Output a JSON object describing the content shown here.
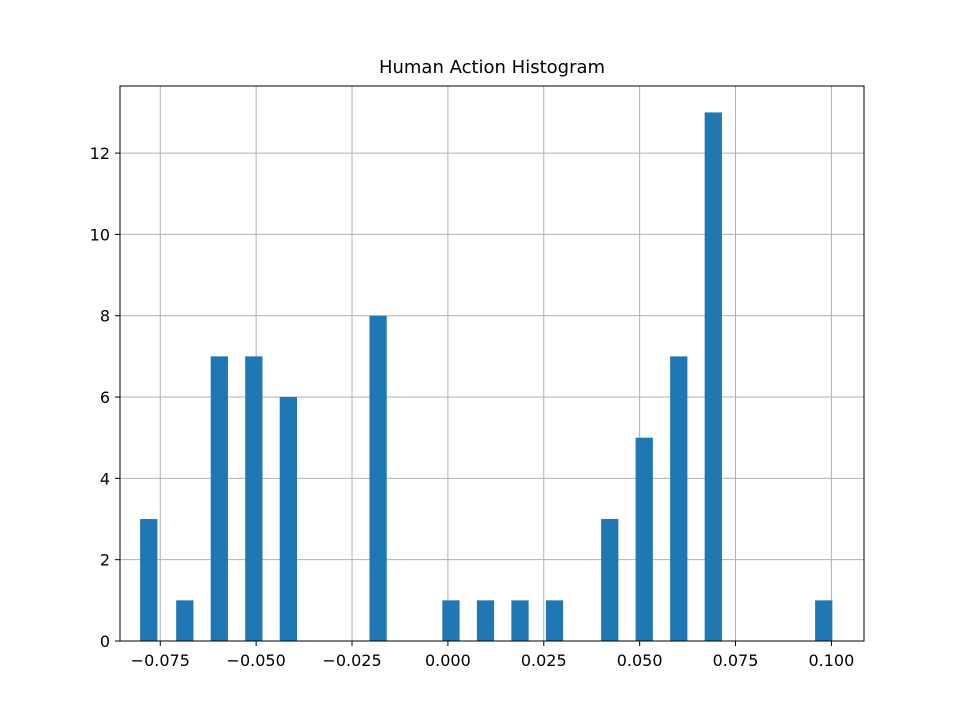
{
  "chart_data": {
    "type": "bar",
    "title": "Human Action Histogram",
    "xlabel": "",
    "ylabel": "",
    "xlim": [
      -0.0855,
      0.1085
    ],
    "ylim": [
      0,
      13.65
    ],
    "grid": true,
    "bar_color": "#1f77b4",
    "bin_width": 0.0045,
    "x_ticks": [
      -0.075,
      -0.05,
      -0.025,
      0.0,
      0.025,
      0.05,
      0.075,
      0.1
    ],
    "x_tick_labels": [
      "−0.075",
      "−0.050",
      "−0.025",
      "0.000",
      "0.025",
      "0.050",
      "0.075",
      "0.100"
    ],
    "y_ticks": [
      0,
      2,
      4,
      6,
      8,
      10,
      12
    ],
    "y_tick_labels": [
      "0",
      "2",
      "4",
      "6",
      "8",
      "10",
      "12"
    ],
    "bins": [
      {
        "x": -0.078,
        "count": 3
      },
      {
        "x": -0.0686,
        "count": 1
      },
      {
        "x": -0.0596,
        "count": 7
      },
      {
        "x": -0.0506,
        "count": 7
      },
      {
        "x": -0.0416,
        "count": 6
      },
      {
        "x": -0.0182,
        "count": 8
      },
      {
        "x": 0.0008,
        "count": 1
      },
      {
        "x": 0.0098,
        "count": 1
      },
      {
        "x": 0.0188,
        "count": 1
      },
      {
        "x": 0.0278,
        "count": 1
      },
      {
        "x": 0.0422,
        "count": 3
      },
      {
        "x": 0.0512,
        "count": 5
      },
      {
        "x": 0.0602,
        "count": 7
      },
      {
        "x": 0.0692,
        "count": 13
      },
      {
        "x": 0.098,
        "count": 1
      }
    ]
  }
}
